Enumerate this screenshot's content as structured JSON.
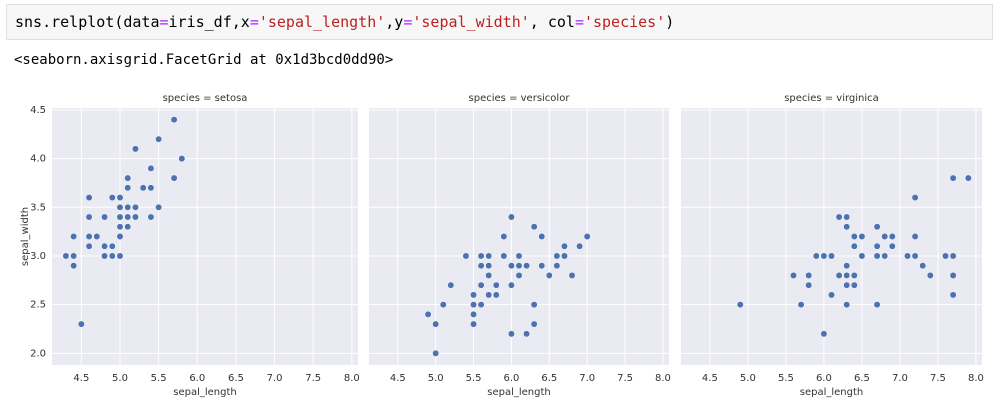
{
  "code": [
    "sns.relplot(data",
    "=",
    "iris_df,x",
    "=",
    "'sepal_length'",
    ",y",
    "=",
    "'sepal_width'",
    ", col",
    "=",
    "'species'",
    ")"
  ],
  "output": "<seaborn.axisgrid.FacetGrid at 0x1d3bcd0dd90>",
  "chart_data": [
    {
      "type": "scatter",
      "title": "species = setosa",
      "x_label": "sepal_length",
      "y_label": "sepal_width",
      "color": "#4c72b0",
      "grid": true,
      "xlim": [
        4.12,
        8.08
      ],
      "ylim": [
        1.88,
        4.52
      ],
      "xticks": [
        4.5,
        {
          "value": 5,
          "label": "5.0"
        },
        5.5,
        {
          "value": 6,
          "label": "6.0"
        },
        6.5,
        {
          "value": 7,
          "label": "7.0"
        },
        7.5,
        {
          "value": 8,
          "label": "8.0"
        }
      ],
      "yticks": [
        {
          "value": 2,
          "label": "2.0"
        },
        2.5,
        {
          "value": 3,
          "label": "3.0"
        },
        3.5,
        {
          "value": 4,
          "label": "4.0"
        },
        4.5
      ],
      "x": [
        5.1,
        4.9,
        4.7,
        4.6,
        5.0,
        5.4,
        4.6,
        5.0,
        4.4,
        4.9,
        5.4,
        4.8,
        4.8,
        4.3,
        5.8,
        5.7,
        5.4,
        5.1,
        5.7,
        5.1,
        5.4,
        5.1,
        4.6,
        5.1,
        4.8,
        5.0,
        5.0,
        5.2,
        5.2,
        4.7,
        4.8,
        5.4,
        5.2,
        5.5,
        4.9,
        5.0,
        5.5,
        4.9,
        4.4,
        5.1,
        5.0,
        4.5,
        4.4,
        5.0,
        5.1,
        4.8,
        5.1,
        4.6,
        5.3,
        5.0
      ],
      "values": [
        3.5,
        3.0,
        3.2,
        3.1,
        3.6,
        3.9,
        3.4,
        3.4,
        2.9,
        3.1,
        3.7,
        3.4,
        3.0,
        3.0,
        4.0,
        4.4,
        3.9,
        3.5,
        3.8,
        3.8,
        3.4,
        3.7,
        3.6,
        3.3,
        3.4,
        3.0,
        3.4,
        3.5,
        3.4,
        3.2,
        3.1,
        3.4,
        4.1,
        4.2,
        3.1,
        3.2,
        3.5,
        3.6,
        3.0,
        3.4,
        3.5,
        2.3,
        3.2,
        3.5,
        3.8,
        3.0,
        3.8,
        3.2,
        3.7,
        3.3
      ]
    },
    {
      "type": "scatter",
      "title": "species = versicolor",
      "x_label": "sepal_length",
      "color": "#4c72b0",
      "grid": true,
      "xlim": [
        4.12,
        8.08
      ],
      "ylim": [
        1.88,
        4.52
      ],
      "xticks": [
        4.5,
        {
          "value": 5,
          "label": "5.0"
        },
        5.5,
        {
          "value": 6,
          "label": "6.0"
        },
        6.5,
        {
          "value": 7,
          "label": "7.0"
        },
        7.5,
        {
          "value": 8,
          "label": "8.0"
        }
      ],
      "yticks": [
        2,
        2.5,
        3,
        3.5,
        4,
        4.5
      ],
      "x": [
        7.0,
        6.4,
        6.9,
        5.5,
        6.5,
        5.7,
        6.3,
        4.9,
        6.6,
        5.2,
        5.0,
        5.9,
        6.0,
        6.1,
        5.6,
        6.7,
        5.6,
        5.8,
        6.2,
        5.6,
        5.9,
        6.1,
        6.3,
        6.1,
        6.4,
        6.6,
        6.8,
        6.7,
        6.0,
        5.7,
        5.5,
        5.5,
        5.8,
        6.0,
        5.4,
        6.0,
        6.7,
        6.3,
        5.6,
        5.5,
        5.5,
        6.1,
        5.8,
        5.0,
        5.6,
        5.7,
        5.7,
        6.2,
        5.1,
        5.7
      ],
      "values": [
        3.2,
        3.2,
        3.1,
        2.3,
        2.8,
        2.8,
        3.3,
        2.4,
        2.9,
        2.7,
        2.0,
        3.0,
        2.2,
        2.9,
        2.9,
        3.1,
        3.0,
        2.7,
        2.2,
        2.5,
        3.2,
        2.8,
        2.5,
        2.8,
        2.9,
        3.0,
        2.8,
        3.0,
        2.9,
        2.6,
        2.4,
        2.4,
        2.7,
        2.7,
        3.0,
        3.4,
        3.1,
        2.3,
        3.0,
        2.5,
        2.6,
        3.0,
        2.6,
        2.3,
        2.7,
        3.0,
        2.9,
        2.9,
        2.5,
        2.8
      ]
    },
    {
      "type": "scatter",
      "title": "species = virginica",
      "x_label": "sepal_length",
      "color": "#4c72b0",
      "grid": true,
      "xlim": [
        4.12,
        8.08
      ],
      "ylim": [
        1.88,
        4.52
      ],
      "xticks": [
        4.5,
        {
          "value": 5,
          "label": "5.0"
        },
        5.5,
        {
          "value": 6,
          "label": "6.0"
        },
        6.5,
        {
          "value": 7,
          "label": "7.0"
        },
        7.5,
        {
          "value": 8,
          "label": "8.0"
        }
      ],
      "yticks": [
        2,
        2.5,
        3,
        3.5,
        4,
        4.5
      ],
      "x": [
        6.3,
        5.8,
        7.1,
        6.3,
        6.5,
        7.6,
        4.9,
        7.3,
        6.7,
        7.2,
        6.5,
        6.4,
        6.8,
        5.7,
        5.8,
        6.4,
        6.5,
        7.7,
        7.7,
        6.0,
        6.9,
        5.6,
        7.7,
        6.3,
        6.7,
        7.2,
        6.2,
        6.1,
        6.4,
        7.2,
        7.4,
        7.9,
        6.4,
        6.3,
        6.1,
        7.7,
        6.3,
        6.4,
        6.0,
        6.9,
        6.7,
        6.9,
        5.8,
        6.8,
        6.7,
        6.7,
        6.3,
        6.5,
        6.2,
        5.9
      ],
      "values": [
        3.3,
        2.7,
        3.0,
        2.9,
        3.0,
        3.0,
        2.5,
        2.9,
        2.5,
        3.6,
        3.2,
        2.7,
        3.0,
        2.5,
        2.8,
        3.2,
        3.0,
        3.8,
        2.6,
        2.2,
        3.2,
        2.8,
        2.8,
        2.7,
        3.3,
        3.2,
        2.8,
        3.0,
        2.8,
        3.0,
        2.8,
        3.8,
        2.8,
        2.8,
        2.6,
        3.0,
        3.4,
        3.1,
        3.0,
        3.1,
        3.1,
        3.1,
        2.7,
        3.2,
        3.3,
        3.0,
        2.5,
        3.0,
        3.4,
        3.0
      ]
    }
  ]
}
